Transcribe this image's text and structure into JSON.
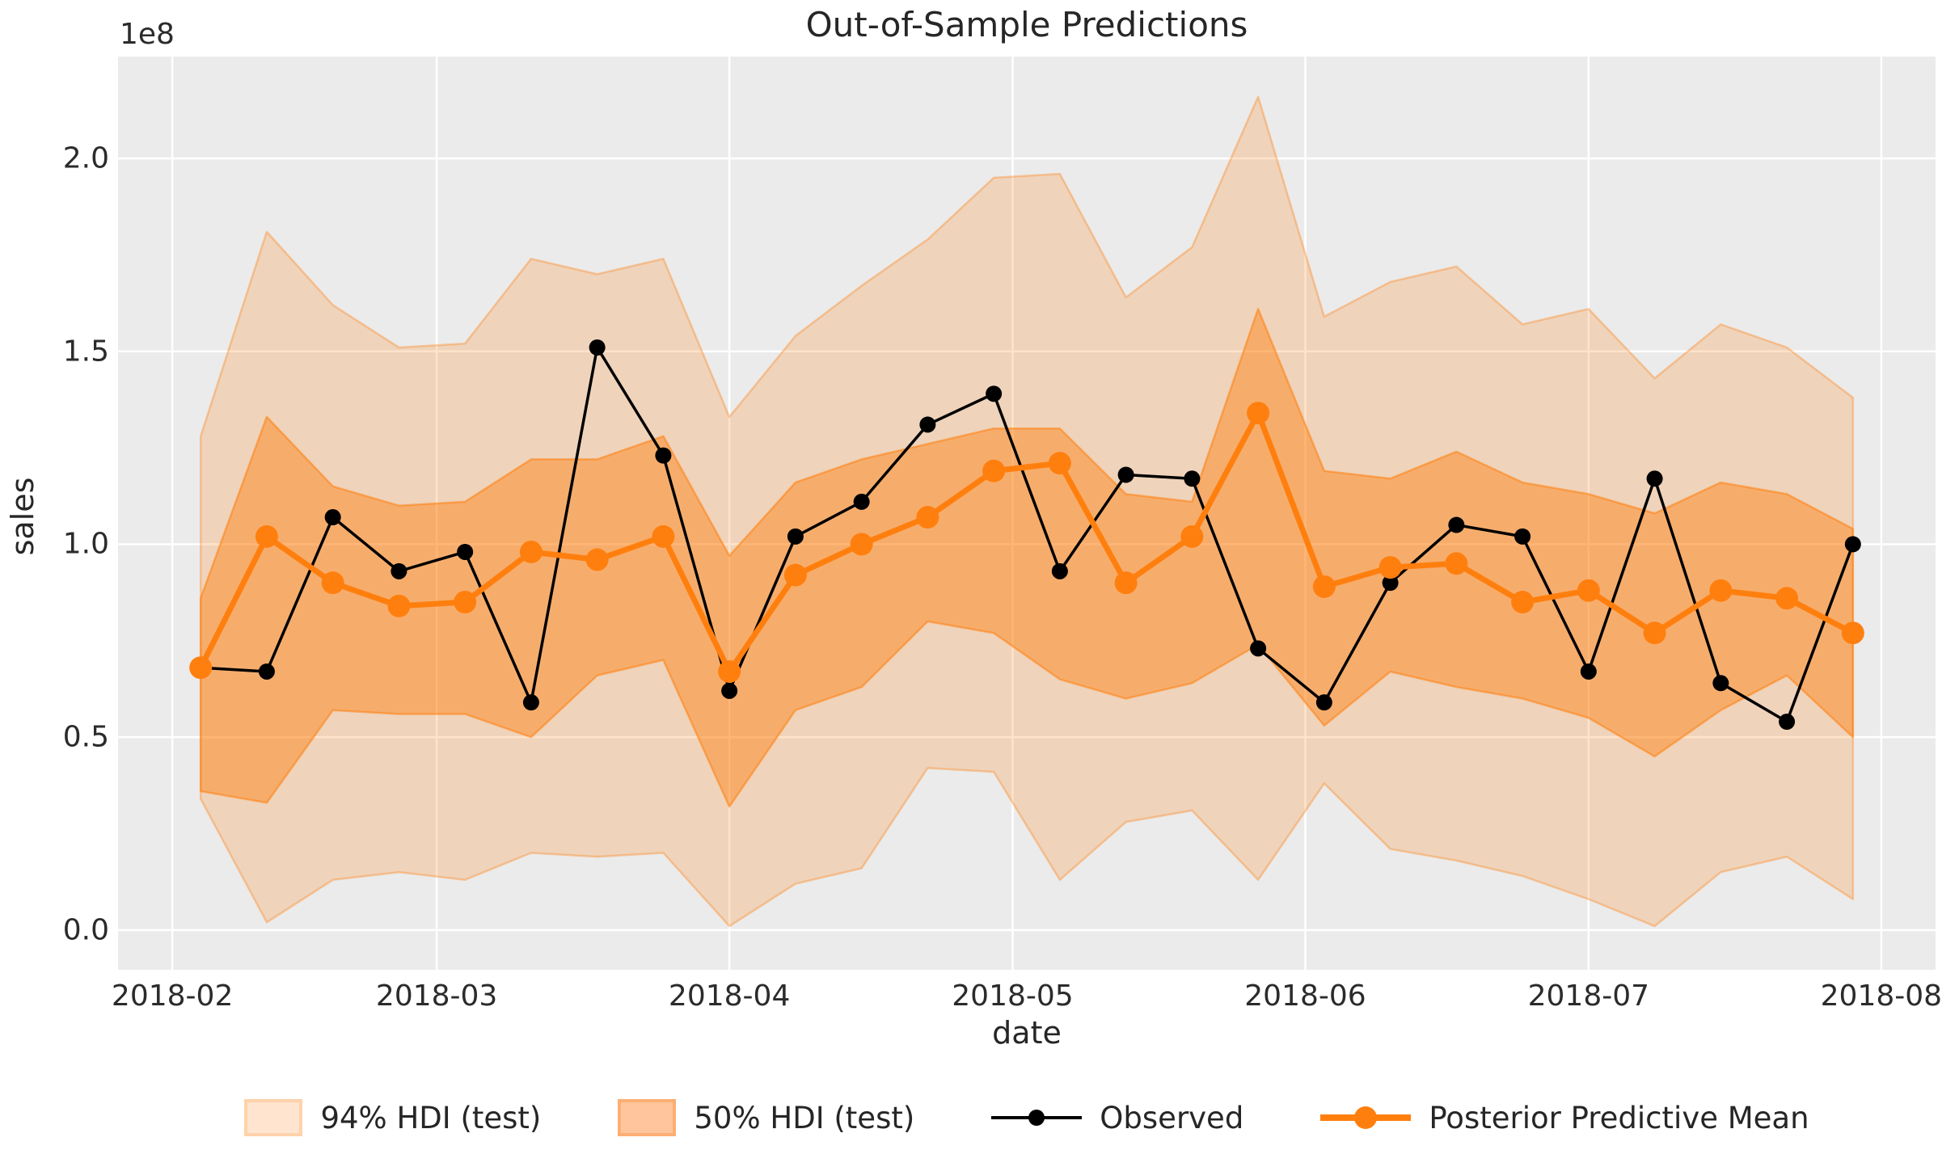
{
  "title": "Out-of-Sample Predictions",
  "axes": {
    "xlabel": "date",
    "ylabel": "sales",
    "offset_label": "1e8",
    "x_tick_dates": [
      "2018-02-01",
      "2018-03-01",
      "2018-04-01",
      "2018-05-01",
      "2018-06-01",
      "2018-07-01",
      "2018-08-01"
    ],
    "x_tick_labels": [
      "2018-02",
      "2018-03",
      "2018-04",
      "2018-05",
      "2018-06",
      "2018-07",
      "2018-08"
    ],
    "y_ticks": [
      0.0,
      0.5,
      1.0,
      1.5,
      2.0
    ],
    "y_tick_labels": [
      "0.0",
      "0.5",
      "1.0",
      "1.5",
      "2.0"
    ],
    "grid": "on"
  },
  "legend": {
    "position": "bottom-center",
    "items": [
      {
        "type": "patch",
        "label": "94% HDI (test)"
      },
      {
        "type": "patch",
        "label": "50% HDI (test)"
      },
      {
        "type": "line",
        "label": "Observed"
      },
      {
        "type": "line",
        "label": "Posterior Predictive Mean"
      }
    ]
  },
  "colors": {
    "accent_orange": "#ff7f0e",
    "observed_black": "#000000",
    "axes_background": "#ebebeb",
    "gridline": "#ffffff",
    "text": "#262626",
    "band94_fill_opacity": 0.22,
    "band50_fill_opacity": 0.45,
    "band_edge_opacity": 0.45
  },
  "chart_data": {
    "type": "line",
    "title": "Out-of-Sample Predictions",
    "xlabel": "date",
    "ylabel": "sales",
    "y_unit_multiplier": "1e8",
    "xlim_days_of_year_2018": [
      26.25,
      218.75
    ],
    "ylim": [
      -0.103,
      2.264
    ],
    "x": [
      "2018-02-04",
      "2018-02-11",
      "2018-02-18",
      "2018-02-25",
      "2018-03-04",
      "2018-03-11",
      "2018-03-18",
      "2018-03-25",
      "2018-04-01",
      "2018-04-08",
      "2018-04-15",
      "2018-04-22",
      "2018-04-29",
      "2018-05-06",
      "2018-05-13",
      "2018-05-20",
      "2018-05-27",
      "2018-06-03",
      "2018-06-10",
      "2018-06-17",
      "2018-06-24",
      "2018-07-01",
      "2018-07-08",
      "2018-07-15",
      "2018-07-22",
      "2018-07-29"
    ],
    "series": [
      {
        "name": "Observed",
        "style": "line+marker",
        "values": [
          0.68,
          0.67,
          1.07,
          0.93,
          0.98,
          0.59,
          1.51,
          1.23,
          0.62,
          1.02,
          1.11,
          1.31,
          1.39,
          0.93,
          1.18,
          1.17,
          0.73,
          0.59,
          0.9,
          1.05,
          1.02,
          0.67,
          1.17,
          0.64,
          0.54,
          1.0
        ]
      },
      {
        "name": "Posterior Predictive Mean",
        "style": "line+marker",
        "values": [
          0.68,
          1.02,
          0.9,
          0.84,
          0.85,
          0.98,
          0.96,
          1.02,
          0.67,
          0.92,
          1.0,
          1.07,
          1.19,
          1.21,
          0.9,
          1.02,
          1.34,
          0.89,
          0.94,
          0.95,
          0.85,
          0.88,
          0.77,
          0.88,
          0.86,
          0.77
        ]
      }
    ],
    "bands": [
      {
        "name": "50% HDI (test)",
        "lower": [
          0.36,
          0.33,
          0.57,
          0.56,
          0.56,
          0.5,
          0.66,
          0.7,
          0.32,
          0.57,
          0.63,
          0.8,
          0.77,
          0.65,
          0.6,
          0.64,
          0.74,
          0.53,
          0.67,
          0.63,
          0.6,
          0.55,
          0.45,
          0.57,
          0.66,
          0.5
        ],
        "upper": [
          0.86,
          1.33,
          1.15,
          1.1,
          1.11,
          1.22,
          1.22,
          1.28,
          0.97,
          1.16,
          1.22,
          1.26,
          1.3,
          1.3,
          1.13,
          1.11,
          1.61,
          1.19,
          1.17,
          1.24,
          1.16,
          1.13,
          1.08,
          1.16,
          1.13,
          1.04
        ]
      },
      {
        "name": "94% HDI (test)",
        "lower": [
          0.34,
          0.02,
          0.13,
          0.15,
          0.13,
          0.2,
          0.19,
          0.2,
          0.01,
          0.12,
          0.16,
          0.42,
          0.41,
          0.13,
          0.28,
          0.31,
          0.13,
          0.38,
          0.21,
          0.18,
          0.14,
          0.08,
          0.01,
          0.15,
          0.19,
          0.08
        ],
        "upper": [
          1.28,
          1.81,
          1.62,
          1.51,
          1.52,
          1.74,
          1.7,
          1.74,
          1.33,
          1.54,
          1.67,
          1.79,
          1.95,
          1.96,
          1.64,
          1.77,
          2.16,
          1.59,
          1.68,
          1.72,
          1.57,
          1.61,
          1.43,
          1.57,
          1.51,
          1.38
        ]
      }
    ],
    "legend_entries": [
      "94% HDI (test)",
      "50% HDI (test)",
      "Observed",
      "Posterior Predictive Mean"
    ],
    "legend_position": "below axes, horizontal"
  }
}
